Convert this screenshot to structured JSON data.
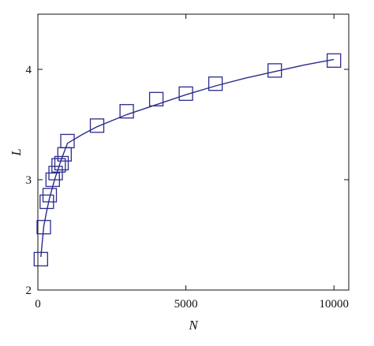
{
  "chart_data": {
    "type": "line",
    "title": "",
    "xlabel": "N",
    "ylabel": "L",
    "xlim": [
      0,
      10500
    ],
    "ylim": [
      2,
      4.5
    ],
    "xticks": [
      0,
      5000,
      10000
    ],
    "xtick_labels": [
      "0",
      "5000",
      "10000"
    ],
    "yticks": [
      2,
      3,
      4
    ],
    "ytick_labels": [
      "2",
      "3",
      "4"
    ],
    "grid": false,
    "legend": "none",
    "series": [
      {
        "color": "#2b2b8c",
        "marker": "square-open",
        "x": [
          100,
          200,
          300,
          400,
          500,
          600,
          700,
          800,
          900,
          1000,
          2000,
          3000,
          4000,
          5000,
          6000,
          8000,
          10000
        ],
        "y": [
          2.28,
          2.57,
          2.8,
          2.86,
          3.0,
          3.06,
          3.13,
          3.15,
          3.23,
          3.35,
          3.49,
          3.62,
          3.73,
          3.78,
          3.87,
          3.99,
          4.08
        ]
      }
    ],
    "curve": {
      "color": "#2b2b8c",
      "x": [
        100,
        200,
        300,
        400,
        500,
        600,
        700,
        800,
        900,
        1000,
        1500,
        2000,
        3000,
        4000,
        5000,
        6000,
        7000,
        8000,
        9000,
        10000
      ],
      "y": [
        2.3,
        2.58,
        2.72,
        2.84,
        2.94,
        3.03,
        3.11,
        3.19,
        3.26,
        3.33,
        3.41,
        3.48,
        3.59,
        3.68,
        3.77,
        3.85,
        3.92,
        3.98,
        4.04,
        4.09
      ]
    }
  }
}
